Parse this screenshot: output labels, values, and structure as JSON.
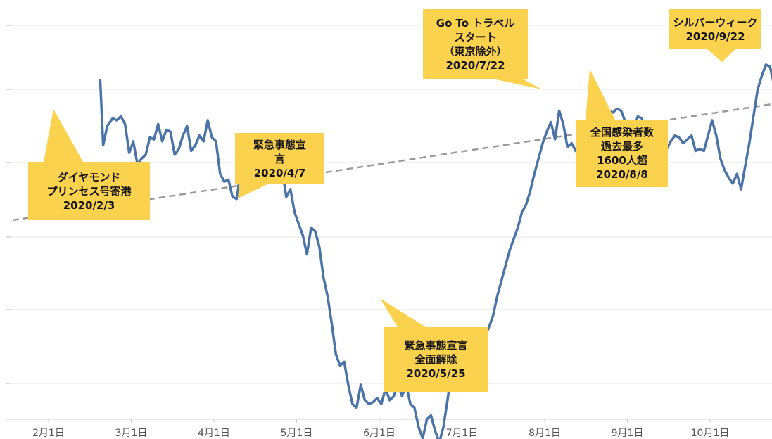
{
  "chart_data": {
    "type": "line",
    "x_ticks": [
      "2月1日",
      "3月1日",
      "4月1日",
      "5月1日",
      "6月1日",
      "7月1日",
      "8月1日",
      "9月1日",
      "10月1日"
    ],
    "grid": true,
    "trendline": "dashed",
    "colors": {
      "line": "#4a74a8",
      "trend": "#9a9a9a",
      "grid": "#e6e6e6",
      "callout": "#fbd24e"
    },
    "series": [
      {
        "values": [
          [
            1.25,
            88.5
          ],
          [
            1.32,
            71.5
          ],
          [
            1.42,
            76.5
          ],
          [
            1.55,
            78.5
          ],
          [
            1.65,
            78.0
          ],
          [
            1.75,
            79.0
          ],
          [
            1.85,
            77.0
          ],
          [
            1.95,
            69.5
          ],
          [
            2.05,
            72.5
          ],
          [
            2.15,
            66.5
          ],
          [
            2.25,
            68.0
          ],
          [
            2.35,
            69.0
          ],
          [
            2.45,
            73.5
          ],
          [
            2.55,
            73.0
          ],
          [
            2.65,
            77.0
          ],
          [
            2.75,
            72.5
          ],
          [
            2.85,
            75.5
          ],
          [
            2.95,
            75.0
          ],
          [
            3.05,
            69.0
          ],
          [
            3.15,
            70.5
          ],
          [
            3.25,
            74.0
          ],
          [
            3.35,
            76.5
          ],
          [
            3.45,
            70.0
          ],
          [
            3.55,
            71.5
          ],
          [
            3.65,
            74.0
          ],
          [
            3.75,
            72.5
          ],
          [
            3.85,
            78.0
          ],
          [
            3.95,
            73.5
          ],
          [
            4.05,
            72.5
          ],
          [
            4.15,
            64.0
          ],
          [
            4.25,
            62.0
          ],
          [
            4.35,
            62.5
          ],
          [
            4.45,
            58.0
          ],
          [
            4.55,
            57.5
          ],
          [
            4.65,
            64.5
          ],
          [
            4.75,
            64.0
          ],
          [
            4.85,
            61.5
          ],
          [
            4.95,
            62.5
          ],
          [
            5.05,
            67.0
          ],
          [
            5.15,
            65.0
          ],
          [
            5.25,
            63.0
          ],
          [
            5.35,
            63.0
          ],
          [
            5.45,
            64.0
          ],
          [
            5.55,
            66.0
          ],
          [
            5.65,
            65.0
          ],
          [
            5.75,
            58.0
          ],
          [
            5.85,
            60.0
          ],
          [
            5.95,
            54.0
          ],
          [
            6.05,
            51.0
          ],
          [
            6.15,
            48.0
          ],
          [
            6.25,
            43.0
          ],
          [
            6.35,
            50.0
          ],
          [
            6.45,
            49.0
          ],
          [
            6.55,
            45.0
          ],
          [
            6.65,
            37.0
          ],
          [
            6.75,
            32.0
          ],
          [
            6.85,
            25.0
          ],
          [
            6.95,
            17.0
          ],
          [
            7.05,
            14.0
          ],
          [
            7.15,
            15.0
          ],
          [
            7.25,
            9.0
          ],
          [
            7.35,
            4.0
          ],
          [
            7.45,
            3.0
          ],
          [
            7.55,
            9.0
          ],
          [
            7.65,
            5.0
          ],
          [
            7.75,
            4.0
          ],
          [
            7.85,
            4.5
          ],
          [
            7.95,
            5.5
          ],
          [
            8.05,
            4.0
          ],
          [
            8.15,
            8.0
          ],
          [
            8.25,
            5.0
          ],
          [
            8.35,
            6.0
          ],
          [
            8.45,
            9.5
          ],
          [
            8.55,
            6.0
          ],
          [
            8.65,
            9.0
          ],
          [
            8.75,
            4.0
          ],
          [
            8.85,
            3.0
          ],
          [
            8.95,
            -2.0
          ],
          [
            9.05,
            -5.0
          ],
          [
            9.15,
            0.0
          ],
          [
            9.25,
            1.0
          ],
          [
            9.35,
            -3.0
          ],
          [
            9.45,
            -6.0
          ],
          [
            9.55,
            -2.0
          ],
          [
            9.65,
            5.0
          ],
          [
            9.75,
            13.0
          ],
          [
            9.85,
            15.0
          ],
          [
            9.95,
            19.0
          ],
          [
            10.05,
            18.0
          ],
          [
            10.15,
            20.0
          ],
          [
            10.25,
            20.0
          ],
          [
            10.35,
            20.5
          ],
          [
            10.45,
            22.0
          ],
          [
            10.55,
            21.5
          ],
          [
            10.65,
            24.0
          ],
          [
            10.75,
            27.0
          ],
          [
            10.85,
            32.0
          ],
          [
            10.95,
            36.0
          ],
          [
            11.05,
            40.0
          ],
          [
            11.15,
            44.0
          ],
          [
            11.25,
            47.0
          ],
          [
            11.35,
            50.0
          ],
          [
            11.45,
            54.0
          ],
          [
            11.55,
            56.0
          ],
          [
            11.65,
            59.5
          ],
          [
            11.75,
            64.0
          ],
          [
            11.85,
            68.0
          ],
          [
            11.95,
            72.0
          ],
          [
            12.05,
            75.0
          ],
          [
            12.15,
            77.5
          ],
          [
            12.25,
            73.0
          ],
          [
            12.35,
            80.5
          ],
          [
            12.45,
            77.0
          ],
          [
            12.55,
            71.0
          ],
          [
            12.65,
            72.0
          ],
          [
            12.75,
            70.0
          ],
          [
            12.85,
            73.0
          ],
          [
            12.95,
            72.0
          ],
          [
            13.05,
            76.0
          ],
          [
            13.15,
            77.5
          ],
          [
            13.25,
            76.0
          ],
          [
            13.35,
            78.0
          ],
          [
            13.45,
            80.0
          ],
          [
            13.55,
            80.5
          ],
          [
            13.65,
            80.0
          ],
          [
            13.75,
            81.0
          ],
          [
            13.85,
            80.5
          ],
          [
            13.95,
            77.5
          ],
          [
            14.05,
            75.0
          ],
          [
            14.15,
            75.5
          ],
          [
            14.25,
            79.0
          ],
          [
            14.35,
            78.5
          ],
          [
            14.45,
            75.0
          ],
          [
            14.55,
            72.0
          ],
          [
            14.65,
            70.0
          ],
          [
            14.75,
            71.5
          ],
          [
            14.85,
            71.0
          ],
          [
            14.95,
            70.5
          ],
          [
            15.05,
            72.5
          ],
          [
            15.15,
            74.0
          ],
          [
            15.25,
            73.5
          ],
          [
            15.35,
            72.0
          ],
          [
            15.45,
            73.0
          ],
          [
            15.55,
            74.0
          ],
          [
            15.65,
            70.0
          ],
          [
            15.75,
            70.5
          ],
          [
            15.85,
            70.0
          ],
          [
            15.95,
            74.0
          ],
          [
            16.05,
            78.0
          ],
          [
            16.15,
            74.0
          ],
          [
            16.25,
            68.0
          ],
          [
            16.35,
            65.0
          ],
          [
            16.45,
            63.0
          ],
          [
            16.55,
            61.5
          ],
          [
            16.65,
            64.0
          ],
          [
            16.75,
            60.0
          ],
          [
            16.85,
            66.0
          ],
          [
            16.95,
            72.0
          ],
          [
            17.05,
            79.0
          ],
          [
            17.15,
            86.0
          ],
          [
            17.25,
            89.5
          ],
          [
            17.35,
            92.5
          ],
          [
            17.45,
            92.0
          ],
          [
            17.55,
            87.0
          ],
          [
            17.65,
            88.0
          ],
          [
            17.75,
            84.5
          ],
          [
            17.85,
            86.0
          ],
          [
            17.95,
            82.5
          ],
          [
            18.05,
            78.5
          ],
          [
            18.15,
            77.5
          ],
          [
            18.25,
            80.0
          ],
          [
            18.35,
            80.0
          ],
          [
            18.45,
            79.0
          ],
          [
            18.55,
            80.5
          ],
          [
            18.65,
            79.5
          ],
          [
            18.75,
            82.0
          ],
          [
            18.85,
            81.5
          ],
          [
            18.95,
            82.5
          ],
          [
            19.05,
            81.0
          ],
          [
            19.15,
            82.0
          ],
          [
            19.25,
            84.0
          ],
          [
            19.35,
            83.0
          ],
          [
            19.45,
            85.5
          ],
          [
            19.55,
            82.5
          ],
          [
            19.65,
            86.0
          ],
          [
            19.75,
            80.0
          ],
          [
            19.85,
            74.5
          ],
          [
            19.95,
            66.0
          ],
          [
            20.05,
            62.5
          ],
          [
            20.15,
            64.5
          ],
          [
            20.25,
            57.5
          ],
          [
            20.35,
            66.0
          ],
          [
            20.45,
            71.5
          ],
          [
            20.55,
            71.0
          ],
          [
            20.65,
            83.0
          ],
          [
            20.75,
            86.5
          ],
          [
            20.85,
            86.5
          ],
          [
            20.95,
            86.0
          ],
          [
            21.05,
            81.0
          ],
          [
            21.15,
            76.5
          ],
          [
            21.25,
            76.0
          ],
          [
            21.35,
            73.0
          ],
          [
            21.45,
            75.0
          ],
          [
            21.55,
            72.5
          ],
          [
            21.65,
            70.0
          ],
          [
            21.75,
            62.0
          ]
        ]
      }
    ],
    "annotations": [
      {
        "lines": [
          "ダイヤモンド",
          "プリンセス号寄港",
          "2020/2/3"
        ]
      },
      {
        "lines": [
          "緊急事態宣",
          "言",
          "2020/4/7"
        ]
      },
      {
        "lines": [
          "緊急事態宣言",
          "全面解除",
          "2020/5/25"
        ]
      },
      {
        "lines": [
          "Go To トラベル",
          "スタート",
          "（東京除外）",
          "2020/7/22"
        ]
      },
      {
        "lines": [
          "全国感染者数",
          "過去最多",
          "1600人超",
          "2020/8/8"
        ]
      },
      {
        "lines": [
          "シルバーウィーク",
          "2020/9/22"
        ]
      }
    ]
  }
}
